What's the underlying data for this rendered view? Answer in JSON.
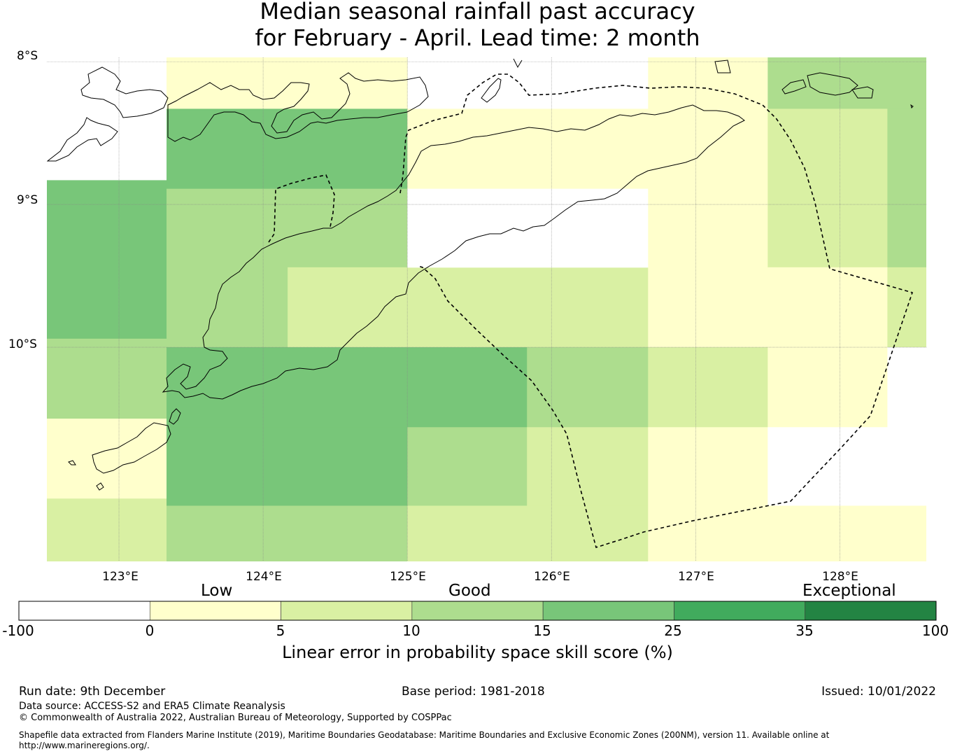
{
  "title_line1": "Median seasonal rainfall past accuracy",
  "title_line2": "for February - April. Lead time: 2 month",
  "latitudes": [
    {
      "lat": -8,
      "label": "8°S"
    },
    {
      "lat": -9,
      "label": "9°S"
    },
    {
      "lat": -10,
      "label": "10°S"
    }
  ],
  "longitudes": [
    {
      "lon": 123,
      "label": "123°E"
    },
    {
      "lon": 124,
      "label": "124°E"
    },
    {
      "lon": 125,
      "label": "125°E"
    },
    {
      "lon": 126,
      "label": "126°E"
    },
    {
      "lon": 127,
      "label": "127°E"
    },
    {
      "lon": 128,
      "label": "128°E"
    }
  ],
  "map_extent": {
    "lon_min": 122.5,
    "lon_max": 128.6,
    "lat_max": -7.97,
    "lat_min": -11.5
  },
  "colorbar": {
    "title": "Linear error in probability space skill score (%)",
    "ticks": [
      "-100",
      "0",
      "5",
      "10",
      "15",
      "25",
      "35",
      "100"
    ],
    "colors": [
      "#ffffff",
      "#ffffcc",
      "#d9f0a3",
      "#addd8e",
      "#78c679",
      "#41ab5d",
      "#238443"
    ],
    "categories": [
      "Low",
      "Good",
      "Exceptional"
    ]
  },
  "chart_data": {
    "type": "heatmap",
    "value_unit": "LEPS skill score class (colour bin index: 0 = <0, 1 = 0-5, 2 = 5-10, 3 = 10-15, 4 = 15-25)",
    "cells": [
      {
        "lon": [
          122.5,
          123.33
        ],
        "lat": [
          -8.83,
          -9.39
        ],
        "bin": 4
      },
      {
        "lon": [
          122.5,
          123.33
        ],
        "lat": [
          -9.39,
          -9.94
        ],
        "bin": 4
      },
      {
        "lon": [
          122.5,
          123.33
        ],
        "lat": [
          -9.94,
          -10.5
        ],
        "bin": 3
      },
      {
        "lon": [
          122.5,
          123.33
        ],
        "lat": [
          -10.5,
          -11.06
        ],
        "bin": 1
      },
      {
        "lon": [
          122.5,
          123.33
        ],
        "lat": [
          -11.06,
          -11.5
        ],
        "bin": 2
      },
      {
        "lon": [
          123.33,
          125.0
        ],
        "lat": [
          -7.97,
          -8.33
        ],
        "bin": 1
      },
      {
        "lon": [
          123.33,
          125.0
        ],
        "lat": [
          -8.33,
          -8.89
        ],
        "bin": 4
      },
      {
        "lon": [
          123.33,
          125.0
        ],
        "lat": [
          -8.89,
          -9.44
        ],
        "bin": 3
      },
      {
        "lon": [
          123.33,
          124.17
        ],
        "lat": [
          -9.44,
          -10.0
        ],
        "bin": 3
      },
      {
        "lon": [
          124.17,
          126.67
        ],
        "lat": [
          -9.44,
          -10.0
        ],
        "bin": 2
      },
      {
        "lon": [
          123.33,
          125.83
        ],
        "lat": [
          -10.0,
          -10.56
        ],
        "bin": 4
      },
      {
        "lon": [
          123.33,
          125.0
        ],
        "lat": [
          -10.56,
          -11.11
        ],
        "bin": 4
      },
      {
        "lon": [
          123.33,
          125.0
        ],
        "lat": [
          -11.11,
          -11.5
        ],
        "bin": 3
      },
      {
        "lon": [
          125.0,
          126.67
        ],
        "lat": [
          -8.33,
          -8.89
        ],
        "bin": 1
      },
      {
        "lon": [
          125.0,
          126.67
        ],
        "lat": [
          -8.89,
          -9.44
        ],
        "bin": 0
      },
      {
        "lon": [
          125.83,
          126.67
        ],
        "lat": [
          -10.0,
          -10.56
        ],
        "bin": 3
      },
      {
        "lon": [
          125.0,
          125.83
        ],
        "lat": [
          -10.56,
          -11.11
        ],
        "bin": 3
      },
      {
        "lon": [
          125.83,
          126.67
        ],
        "lat": [
          -10.56,
          -11.11
        ],
        "bin": 2
      },
      {
        "lon": [
          125.0,
          126.67
        ],
        "lat": [
          -11.11,
          -11.5
        ],
        "bin": 2
      },
      {
        "lon": [
          126.67,
          127.5
        ],
        "lat": [
          -7.97,
          -10.0
        ],
        "bin": 1
      },
      {
        "lon": [
          126.67,
          127.5
        ],
        "lat": [
          -10.0,
          -10.56
        ],
        "bin": 2
      },
      {
        "lon": [
          126.67,
          127.5
        ],
        "lat": [
          -10.56,
          -11.5
        ],
        "bin": 1
      },
      {
        "lon": [
          127.5,
          128.6
        ],
        "lat": [
          -7.97,
          -8.33
        ],
        "bin": 3
      },
      {
        "lon": [
          127.5,
          128.33
        ],
        "lat": [
          -8.33,
          -9.44
        ],
        "bin": 2
      },
      {
        "lon": [
          128.33,
          128.6
        ],
        "lat": [
          -8.33,
          -9.44
        ],
        "bin": 3
      },
      {
        "lon": [
          127.5,
          128.33
        ],
        "lat": [
          -9.44,
          -10.0
        ],
        "bin": 1
      },
      {
        "lon": [
          128.33,
          128.6
        ],
        "lat": [
          -9.44,
          -10.0
        ],
        "bin": 2
      },
      {
        "lon": [
          127.5,
          128.33
        ],
        "lat": [
          -10.0,
          -10.56
        ],
        "bin": 1
      },
      {
        "lon": [
          128.33,
          128.6
        ],
        "lat": [
          -10.0,
          -10.56
        ],
        "bin": 0
      },
      {
        "lon": [
          127.5,
          128.6
        ],
        "lat": [
          -10.56,
          -11.11
        ],
        "bin": 0
      },
      {
        "lon": [
          127.5,
          128.6
        ],
        "lat": [
          -11.11,
          -11.5
        ],
        "bin": 1
      }
    ]
  },
  "footer": {
    "run_date": "Run date: 9th December",
    "base_period": "Base period: 1981-2018",
    "issued": "Issued: 10/01/2022",
    "data_source": "Data source: ACCESS-S2 and ERA5 Climate Reanalysis",
    "copyright": "© Commonwealth of Australia 2022, Australian Bureau of Meteorology, Supported by COSPPac",
    "shapefile_note": "Shapefile data extracted from Flanders Marine Institute (2019), Maritime Boundaries Geodatabase: Maritime Boundaries and Exclusive Economic Zones (200NM), version 11. Available online at http://www.marineregions.org/."
  }
}
